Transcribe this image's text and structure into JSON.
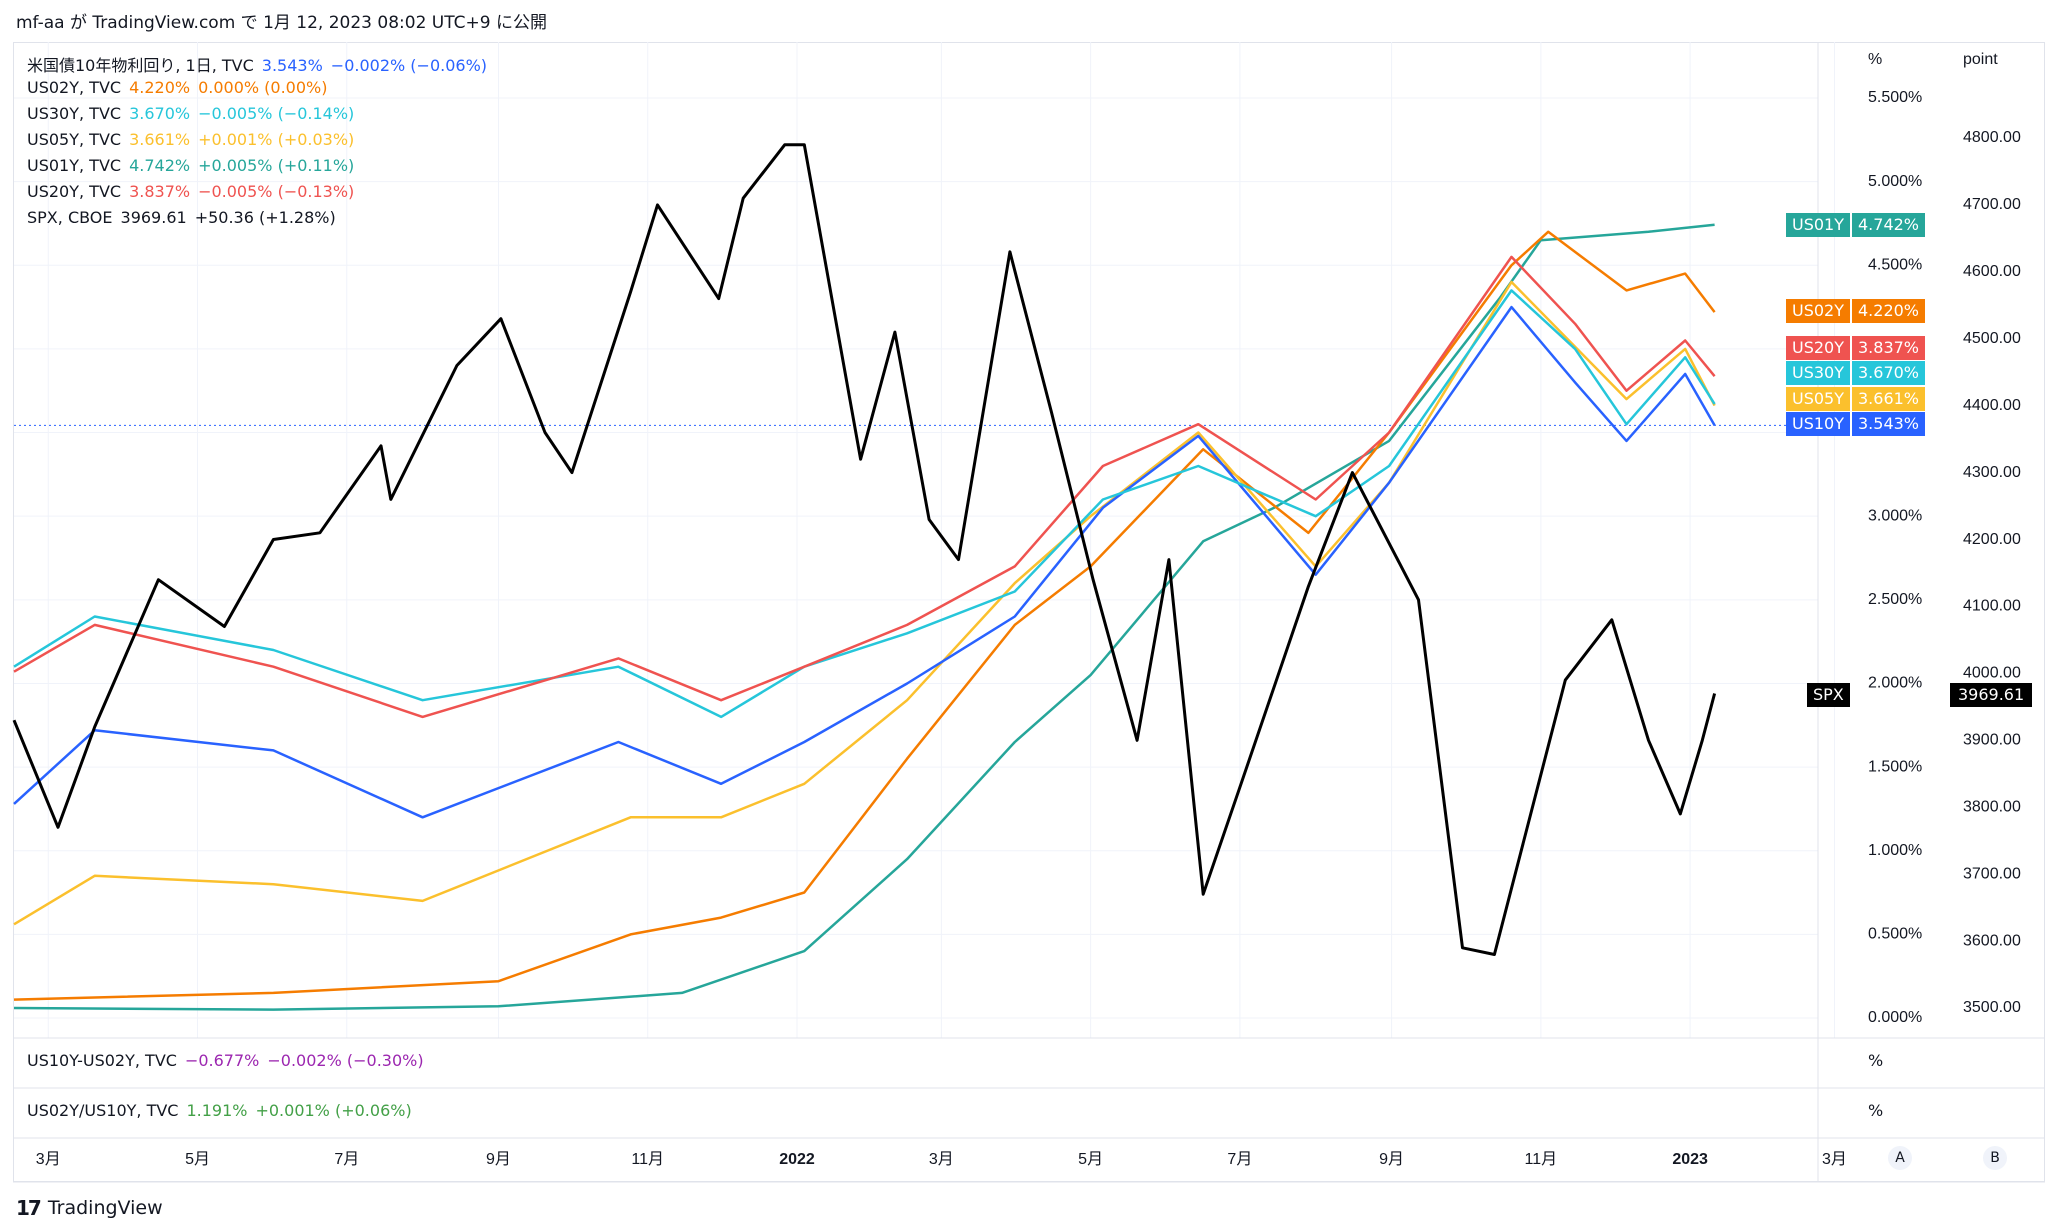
{
  "header": {
    "text": "mf-aa が TradingView.com で 1月 12, 2023 08:02 UTC+9 に公開"
  },
  "brand": {
    "logo": "17",
    "name": "TradingView"
  },
  "legend": [
    {
      "name": "米国債10年物利回り, 1日, TVC",
      "value": "3.543%",
      "change": "−0.002% (−0.06%)",
      "color": "#2962ff"
    },
    {
      "name": "US02Y, TVC",
      "value": "4.220%",
      "change": "0.000% (0.00%)",
      "color": "#f57c00"
    },
    {
      "name": "US30Y, TVC",
      "value": "3.670%",
      "change": "−0.005% (−0.14%)",
      "color": "#26c6da"
    },
    {
      "name": "US05Y, TVC",
      "value": "3.661%",
      "change": "+0.001% (+0.03%)",
      "color": "#fbc02d"
    },
    {
      "name": "US01Y, TVC",
      "value": "4.742%",
      "change": "+0.005% (+0.11%)",
      "color": "#26a69a"
    },
    {
      "name": "US20Y, TVC",
      "value": "3.837%",
      "change": "−0.005% (−0.13%)",
      "color": "#ef5350"
    },
    {
      "name": "SPX, CBOE",
      "value": "3969.61",
      "change": "+50.36 (+1.28%)",
      "color": "#000000"
    }
  ],
  "axis": {
    "pct_unit": "%",
    "point_unit": "point",
    "pct_ticks": [
      "5.500%",
      "5.000%",
      "4.500%",
      "3.000%",
      "2.500%",
      "2.000%",
      "1.500%",
      "1.000%",
      "0.500%",
      "0.000%"
    ],
    "point_ticks": [
      "4800.00",
      "4700.00",
      "4600.00",
      "4500.00",
      "4400.00",
      "4300.00",
      "4200.00",
      "4100.00",
      "4000.00",
      "3900.00",
      "3800.00",
      "3700.00",
      "3600.00",
      "3500.00"
    ],
    "x_ticks": [
      "3月",
      "5月",
      "7月",
      "9月",
      "11月",
      "2022",
      "3月",
      "5月",
      "7月",
      "9月",
      "11月",
      "2023",
      "3月"
    ]
  },
  "badges": [
    {
      "name": "US01Y",
      "value": "4.742%",
      "color": "#26a69a"
    },
    {
      "name": "US02Y",
      "value": "4.220%",
      "color": "#f57c00"
    },
    {
      "name": "US20Y",
      "value": "3.837%",
      "color": "#ef5350"
    },
    {
      "name": "US30Y",
      "value": "3.670%",
      "color": "#26c6da"
    },
    {
      "name": "US05Y",
      "value": "3.661%",
      "color": "#fbc02d"
    },
    {
      "name": "US10Y",
      "value": "3.543%",
      "color": "#2962ff"
    },
    {
      "name": "SPX",
      "value": "3969.61",
      "color": "#000000"
    }
  ],
  "panes": [
    {
      "name": "US10Y-US02Y, TVC",
      "value": "−0.677%",
      "change": "−0.002% (−0.30%)",
      "color": "#9c27b0",
      "unit": "%"
    },
    {
      "name": "US02Y/US10Y, TVC",
      "value": "1.191%",
      "change": "+0.001% (+0.06%)",
      "color": "#43a047",
      "unit": "%"
    }
  ],
  "scale_buttons": [
    "A",
    "B"
  ],
  "chart_data": {
    "type": "line",
    "x_range": [
      "2021-02",
      "2023-03"
    ],
    "y_left_unit": "%",
    "y_right_unit": "point",
    "series": [
      {
        "name": "SPX",
        "axis": "right",
        "color": "#000000",
        "points": [
          [
            "2021-02-15",
            3930
          ],
          [
            "2021-03-05",
            3770
          ],
          [
            "2021-03-20",
            3920
          ],
          [
            "2021-04-15",
            4140
          ],
          [
            "2021-05-12",
            4070
          ],
          [
            "2021-06-01",
            4200
          ],
          [
            "2021-06-20",
            4210
          ],
          [
            "2021-07-15",
            4340
          ],
          [
            "2021-07-19",
            4260
          ],
          [
            "2021-08-15",
            4460
          ],
          [
            "2021-09-02",
            4530
          ],
          [
            "2021-09-20",
            4360
          ],
          [
            "2021-10-01",
            4300
          ],
          [
            "2021-10-25",
            4570
          ],
          [
            "2021-11-05",
            4700
          ],
          [
            "2021-11-30",
            4560
          ],
          [
            "2021-12-10",
            4710
          ],
          [
            "2021-12-27",
            4790
          ],
          [
            "2022-01-04",
            4790
          ],
          [
            "2022-01-27",
            4320
          ],
          [
            "2022-02-10",
            4510
          ],
          [
            "2022-02-24",
            4230
          ],
          [
            "2022-03-08",
            4170
          ],
          [
            "2022-03-29",
            4630
          ],
          [
            "2022-04-15",
            4390
          ],
          [
            "2022-05-02",
            4140
          ],
          [
            "2022-05-20",
            3900
          ],
          [
            "2022-06-02",
            4170
          ],
          [
            "2022-06-16",
            3670
          ],
          [
            "2022-07-01",
            3830
          ],
          [
            "2022-07-29",
            4130
          ],
          [
            "2022-08-16",
            4300
          ],
          [
            "2022-09-12",
            4110
          ],
          [
            "2022-09-30",
            3590
          ],
          [
            "2022-10-13",
            3580
          ],
          [
            "2022-11-11",
            3990
          ],
          [
            "2022-11-30",
            4080
          ],
          [
            "2022-12-15",
            3900
          ],
          [
            "2022-12-28",
            3790
          ],
          [
            "2023-01-06",
            3900
          ],
          [
            "2023-01-11",
            3970
          ]
        ]
      },
      {
        "name": "US01Y",
        "axis": "left",
        "color": "#26a69a",
        "points": [
          [
            "2021-02-15",
            0.06
          ],
          [
            "2021-06-01",
            0.05
          ],
          [
            "2021-09-01",
            0.07
          ],
          [
            "2021-11-15",
            0.15
          ],
          [
            "2022-01-04",
            0.4
          ],
          [
            "2022-02-15",
            0.95
          ],
          [
            "2022-03-31",
            1.65
          ],
          [
            "2022-05-01",
            2.05
          ],
          [
            "2022-06-16",
            2.85
          ],
          [
            "2022-07-15",
            3.05
          ],
          [
            "2022-08-31",
            3.45
          ],
          [
            "2022-10-15",
            4.3
          ],
          [
            "2022-11-01",
            4.65
          ],
          [
            "2022-12-15",
            4.7
          ],
          [
            "2023-01-11",
            4.742
          ]
        ]
      },
      {
        "name": "US02Y",
        "axis": "left",
        "color": "#f57c00",
        "points": [
          [
            "2021-02-15",
            0.11
          ],
          [
            "2021-06-01",
            0.15
          ],
          [
            "2021-09-01",
            0.22
          ],
          [
            "2021-10-25",
            0.5
          ],
          [
            "2021-12-01",
            0.6
          ],
          [
            "2022-01-04",
            0.75
          ],
          [
            "2022-02-15",
            1.55
          ],
          [
            "2022-03-31",
            2.35
          ],
          [
            "2022-05-01",
            2.7
          ],
          [
            "2022-06-16",
            3.4
          ],
          [
            "2022-07-29",
            2.9
          ],
          [
            "2022-08-31",
            3.5
          ],
          [
            "2022-10-20",
            4.5
          ],
          [
            "2022-11-04",
            4.7
          ],
          [
            "2022-12-06",
            4.35
          ],
          [
            "2022-12-30",
            4.45
          ],
          [
            "2023-01-11",
            4.22
          ]
        ]
      },
      {
        "name": "US05Y",
        "axis": "left",
        "color": "#fbc02d",
        "points": [
          [
            "2021-02-15",
            0.56
          ],
          [
            "2021-03-20",
            0.85
          ],
          [
            "2021-06-01",
            0.8
          ],
          [
            "2021-08-01",
            0.7
          ],
          [
            "2021-10-25",
            1.2
          ],
          [
            "2021-12-01",
            1.2
          ],
          [
            "2022-01-04",
            1.4
          ],
          [
            "2022-02-15",
            1.9
          ],
          [
            "2022-03-31",
            2.6
          ],
          [
            "2022-05-01",
            3.0
          ],
          [
            "2022-06-14",
            3.5
          ],
          [
            "2022-08-01",
            2.7
          ],
          [
            "2022-08-31",
            3.2
          ],
          [
            "2022-10-20",
            4.4
          ],
          [
            "2022-12-06",
            3.7
          ],
          [
            "2022-12-30",
            4.0
          ],
          [
            "2023-01-11",
            3.661
          ]
        ]
      },
      {
        "name": "US10Y",
        "axis": "left",
        "color": "#2962ff",
        "points": [
          [
            "2021-02-15",
            1.28
          ],
          [
            "2021-03-20",
            1.72
          ],
          [
            "2021-06-01",
            1.6
          ],
          [
            "2021-08-01",
            1.2
          ],
          [
            "2021-10-20",
            1.65
          ],
          [
            "2021-12-01",
            1.4
          ],
          [
            "2022-01-04",
            1.65
          ],
          [
            "2022-02-15",
            2.0
          ],
          [
            "2022-03-31",
            2.4
          ],
          [
            "2022-05-06",
            3.05
          ],
          [
            "2022-06-14",
            3.48
          ],
          [
            "2022-08-01",
            2.65
          ],
          [
            "2022-08-31",
            3.2
          ],
          [
            "2022-10-20",
            4.25
          ],
          [
            "2022-11-15",
            3.8
          ],
          [
            "2022-12-06",
            3.45
          ],
          [
            "2022-12-30",
            3.85
          ],
          [
            "2023-01-11",
            3.543
          ]
        ]
      },
      {
        "name": "US20Y",
        "axis": "left",
        "color": "#ef5350",
        "points": [
          [
            "2021-02-15",
            2.07
          ],
          [
            "2021-03-20",
            2.35
          ],
          [
            "2021-06-01",
            2.1
          ],
          [
            "2021-08-01",
            1.8
          ],
          [
            "2021-10-20",
            2.15
          ],
          [
            "2021-12-01",
            1.9
          ],
          [
            "2022-01-04",
            2.1
          ],
          [
            "2022-02-15",
            2.35
          ],
          [
            "2022-03-31",
            2.7
          ],
          [
            "2022-05-06",
            3.3
          ],
          [
            "2022-06-14",
            3.55
          ],
          [
            "2022-08-01",
            3.1
          ],
          [
            "2022-08-31",
            3.5
          ],
          [
            "2022-10-20",
            4.55
          ],
          [
            "2022-11-15",
            4.15
          ],
          [
            "2022-12-06",
            3.75
          ],
          [
            "2022-12-30",
            4.05
          ],
          [
            "2023-01-11",
            3.837
          ]
        ]
      },
      {
        "name": "US30Y",
        "axis": "left",
        "color": "#26c6da",
        "points": [
          [
            "2021-02-15",
            2.1
          ],
          [
            "2021-03-20",
            2.4
          ],
          [
            "2021-06-01",
            2.2
          ],
          [
            "2021-08-01",
            1.9
          ],
          [
            "2021-10-20",
            2.1
          ],
          [
            "2021-12-01",
            1.8
          ],
          [
            "2022-01-04",
            2.1
          ],
          [
            "2022-02-15",
            2.3
          ],
          [
            "2022-03-31",
            2.55
          ],
          [
            "2022-05-06",
            3.1
          ],
          [
            "2022-06-14",
            3.3
          ],
          [
            "2022-08-01",
            3.0
          ],
          [
            "2022-08-31",
            3.3
          ],
          [
            "2022-10-20",
            4.35
          ],
          [
            "2022-11-15",
            4.0
          ],
          [
            "2022-12-06",
            3.55
          ],
          [
            "2022-12-30",
            3.95
          ],
          [
            "2023-01-11",
            3.67
          ]
        ]
      }
    ]
  }
}
